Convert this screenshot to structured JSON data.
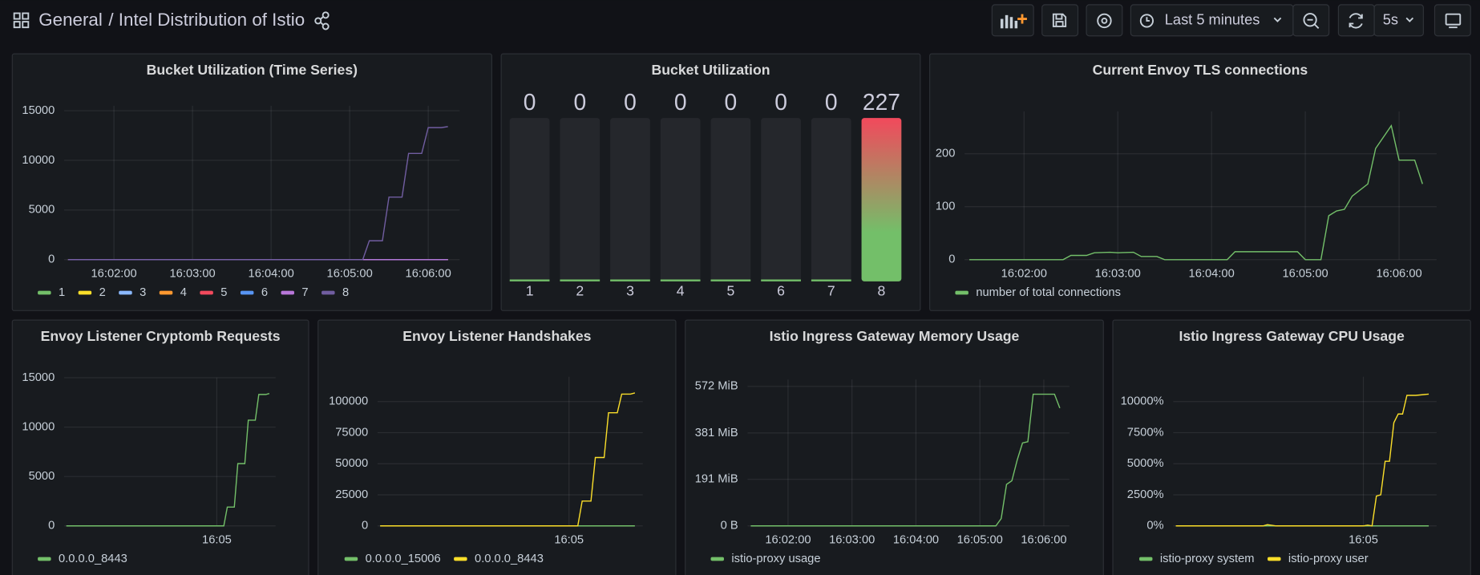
{
  "header": {
    "breadcrumb": "General",
    "title": "/ Intel Distribution of Istio",
    "time_range": "Last 5 minutes",
    "refresh": "5s"
  },
  "chart_data": [
    {
      "type": "line",
      "title": "Bucket Utilization (Time Series)",
      "x": [
        "16:01:25",
        "16:05:10",
        "16:05:15",
        "16:05:25",
        "16:05:30",
        "16:05:40",
        "16:05:45",
        "16:05:55",
        "16:06:00",
        "16:06:10",
        "16:06:15"
      ],
      "series": [
        {
          "name": "1",
          "color": "#73bf69",
          "values": [
            0,
            0,
            0,
            0,
            0,
            0,
            0,
            0,
            0,
            0,
            0
          ]
        },
        {
          "name": "2",
          "color": "#fade2a",
          "values": [
            0,
            0,
            0,
            0,
            0,
            0,
            0,
            0,
            0,
            0,
            0
          ]
        },
        {
          "name": "3",
          "color": "#8ab8ff",
          "values": [
            0,
            0,
            0,
            0,
            0,
            0,
            0,
            0,
            0,
            0,
            0
          ]
        },
        {
          "name": "4",
          "color": "#ff9830",
          "values": [
            0,
            0,
            0,
            0,
            0,
            0,
            0,
            0,
            0,
            0,
            0
          ]
        },
        {
          "name": "5",
          "color": "#f2495c",
          "values": [
            0,
            0,
            0,
            0,
            0,
            0,
            0,
            0,
            0,
            0,
            0
          ]
        },
        {
          "name": "6",
          "color": "#5794f2",
          "values": [
            0,
            0,
            0,
            0,
            0,
            0,
            0,
            0,
            0,
            0,
            0
          ]
        },
        {
          "name": "7",
          "color": "#b877d9",
          "values": [
            0,
            0,
            0,
            0,
            0,
            0,
            0,
            0,
            0,
            0,
            0
          ]
        },
        {
          "name": "8",
          "color": "#705da0",
          "values": [
            0,
            0,
            1900,
            1900,
            6300,
            6300,
            10700,
            10700,
            13300,
            13300,
            13400
          ]
        }
      ],
      "xlim": [
        "16:01:22",
        "16:06:24"
      ],
      "xticks": [
        "16:02:00",
        "16:03:00",
        "16:04:00",
        "16:05:00",
        "16:06:00"
      ],
      "ylim": [
        0,
        15500
      ],
      "yticks": [
        0,
        5000,
        10000,
        15000
      ],
      "grid": true,
      "legend": "bottom"
    },
    {
      "type": "bargauge",
      "title": "Bucket Utilization",
      "categories": [
        "1",
        "2",
        "3",
        "4",
        "5",
        "6",
        "7",
        "8"
      ],
      "values": [
        0,
        0,
        0,
        0,
        0,
        0,
        0,
        227
      ],
      "ylim": [
        0,
        227
      ],
      "color": "#73bf69",
      "value_colors": [
        "#73bf69",
        "#73bf69",
        "#73bf69",
        "#73bf69",
        "#73bf69",
        "#73bf69",
        "#73bf69",
        "#f2495c"
      ]
    },
    {
      "type": "line",
      "title": "Current Envoy TLS connections",
      "x": [
        "16:01:25",
        "16:02:25",
        "16:02:30",
        "16:02:40",
        "16:02:45",
        "16:02:55",
        "16:03:00",
        "16:03:10",
        "16:03:15",
        "16:03:25",
        "16:03:30",
        "16:04:10",
        "16:04:15",
        "16:04:55",
        "16:05:00",
        "16:05:10",
        "16:05:15",
        "16:05:20",
        "16:05:25",
        "16:05:30",
        "16:05:40",
        "16:05:45",
        "16:05:55",
        "16:06:00",
        "16:06:10",
        "16:06:15"
      ],
      "series": [
        {
          "name": "number of total connections",
          "color": "#73bf69",
          "values": [
            0,
            0,
            8,
            8,
            13,
            14,
            13,
            14,
            6,
            6,
            0,
            0,
            15,
            15,
            0,
            0,
            83,
            92,
            95,
            120,
            143,
            210,
            253,
            188,
            188,
            143
          ]
        }
      ],
      "xlim": [
        "16:01:22",
        "16:06:24"
      ],
      "xticks": [
        "16:02:00",
        "16:03:00",
        "16:04:00",
        "16:05:00",
        "16:06:00"
      ],
      "ylim": [
        0,
        280
      ],
      "yticks": [
        0,
        100,
        200
      ],
      "grid": true,
      "legend": "bottom"
    },
    {
      "type": "line",
      "title": "Envoy Listener Cryptomb Requests",
      "x": [
        "16:01:25",
        "16:05:10",
        "16:05:15",
        "16:05:25",
        "16:05:30",
        "16:05:40",
        "16:05:45",
        "16:05:55",
        "16:06:00",
        "16:06:10",
        "16:06:15"
      ],
      "series": [
        {
          "name": "0.0.0.0_8443",
          "color": "#73bf69",
          "values": [
            0,
            0,
            1900,
            1900,
            6300,
            6300,
            10700,
            10700,
            13300,
            13300,
            13400
          ]
        }
      ],
      "xlim": [
        "16:01:22",
        "16:06:24"
      ],
      "xticks": [
        {
          "value": "16:05:00",
          "label": "16:05"
        }
      ],
      "ylim": [
        0,
        15000
      ],
      "yticks": [
        0,
        5000,
        10000,
        15000
      ],
      "grid": true,
      "legend": "bottom"
    },
    {
      "type": "line",
      "title": "Envoy Listener Handshakes",
      "x": [
        "16:01:25",
        "16:05:10",
        "16:05:15",
        "16:05:25",
        "16:05:30",
        "16:05:40",
        "16:05:45",
        "16:05:55",
        "16:06:00",
        "16:06:10",
        "16:06:15"
      ],
      "series": [
        {
          "name": "0.0.0.0_15006",
          "color": "#73bf69",
          "values": [
            0,
            0,
            0,
            0,
            0,
            0,
            0,
            0,
            0,
            0,
            0
          ]
        },
        {
          "name": "0.0.0.0_8443",
          "color": "#fade2a",
          "values": [
            0,
            0,
            20000,
            20000,
            55000,
            55000,
            91000,
            91000,
            106000,
            106000,
            107000
          ]
        }
      ],
      "xlim": [
        "16:01:22",
        "16:06:24"
      ],
      "xticks": [
        {
          "value": "16:05:00",
          "label": "16:05"
        }
      ],
      "ylim": [
        0,
        120000
      ],
      "yticks": [
        0,
        25000,
        50000,
        75000,
        100000
      ],
      "grid": true,
      "legend": "bottom"
    },
    {
      "type": "line",
      "title": "Istio Ingress Gateway Memory Usage",
      "x": [
        "16:01:25",
        "16:05:15",
        "16:05:20",
        "16:05:25",
        "16:05:30",
        "16:05:35",
        "16:05:40",
        "16:05:45",
        "16:05:50",
        "16:06:00",
        "16:06:10",
        "16:06:15"
      ],
      "series": [
        {
          "name": "istio-proxy usage",
          "color": "#73bf69",
          "values": [
            0,
            0,
            30,
            170,
            185,
            270,
            340,
            345,
            540,
            540,
            540,
            483
          ]
        }
      ],
      "xlim": [
        "16:01:22",
        "16:06:24"
      ],
      "xticks": [
        "16:02:00",
        "16:03:00",
        "16:04:00",
        "16:05:00",
        "16:06:00"
      ],
      "ylim": [
        0,
        600
      ],
      "yticks": [
        {
          "value": 0,
          "label": "0 B"
        },
        {
          "value": 191,
          "label": "191 MiB"
        },
        {
          "value": 381,
          "label": "381 MiB"
        },
        {
          "value": 572,
          "label": "572 MiB"
        }
      ],
      "grid": true,
      "legend": "bottom"
    },
    {
      "type": "line",
      "title": "Istio Ingress Gateway CPU Usage",
      "x": [
        "16:01:25",
        "16:03:05",
        "16:03:10",
        "16:03:20",
        "16:05:00",
        "16:05:05",
        "16:05:10",
        "16:05:15",
        "16:05:20",
        "16:05:25",
        "16:05:30",
        "16:05:35",
        "16:05:40",
        "16:05:45",
        "16:05:50",
        "16:05:55",
        "16:06:00",
        "16:06:15"
      ],
      "series": [
        {
          "name": "istio-proxy system",
          "color": "#73bf69",
          "values": [
            0,
            0,
            0,
            0,
            0,
            0,
            0,
            0,
            0,
            0,
            0,
            0,
            0,
            0,
            0,
            0,
            0,
            0
          ]
        },
        {
          "name": "istio-proxy user",
          "color": "#fade2a",
          "values": [
            0,
            0,
            100,
            0,
            0,
            60,
            0,
            2400,
            2500,
            5200,
            5200,
            8300,
            9000,
            9000,
            10500,
            10500,
            10500,
            10600
          ]
        }
      ],
      "xlim": [
        "16:01:22",
        "16:06:24"
      ],
      "xticks": [
        {
          "value": "16:05:00",
          "label": "16:05"
        }
      ],
      "ylim": [
        0,
        12000
      ],
      "yticks": [
        {
          "value": 0,
          "label": "0%"
        },
        {
          "value": 2500,
          "label": "2500%"
        },
        {
          "value": 5000,
          "label": "5000%"
        },
        {
          "value": 7500,
          "label": "7500%"
        },
        {
          "value": 10000,
          "label": "10000%"
        }
      ],
      "grid": true,
      "legend": "bottom"
    }
  ]
}
